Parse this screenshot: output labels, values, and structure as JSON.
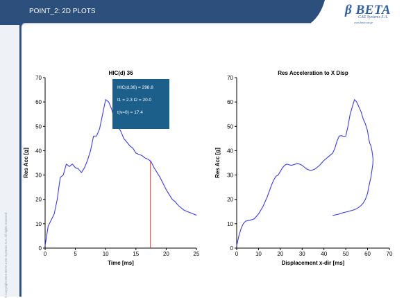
{
  "header": {
    "title": "POINT_2: 2D PLOTS",
    "bar_color": "#2d4f7c",
    "brand_color": "#2e5fa8"
  },
  "logo": {
    "text": "β BETA",
    "subtitle": "CAE Systems S.A.",
    "url": "www.beta-cae.gr"
  },
  "copyright": "© Copyright 2010 BETA CAE Systems S.A. All rights reserved",
  "chart_data": [
    {
      "type": "line",
      "title": "HIC(d) 36",
      "xlabel": "Time [ms]",
      "ylabel": "Res Acc [g]",
      "xlim": [
        0,
        25
      ],
      "ylim": [
        0,
        70
      ],
      "xticks": [
        0,
        5,
        10,
        15,
        20,
        25
      ],
      "yticks": [
        0,
        10,
        20,
        30,
        40,
        50,
        60,
        70
      ],
      "grid": false,
      "line_color": "#3a3aff",
      "series": [
        {
          "x": [
            0,
            0.5,
            1,
            1.5,
            2,
            2.5,
            3,
            3.5,
            4,
            4.5,
            5,
            5.5,
            6,
            6.5,
            7,
            7.5,
            8,
            8.5,
            9,
            9.5,
            10,
            10.5,
            11,
            11.5,
            12,
            12.5,
            13,
            13.5,
            14,
            14.5,
            15,
            15.5,
            16,
            16.5,
            17,
            17.5,
            18,
            18.5,
            19,
            19.5,
            20,
            20.5,
            21,
            21.5,
            22,
            22.5,
            23,
            23.5,
            24,
            24.5,
            25
          ],
          "y": [
            1,
            9,
            11.5,
            14,
            20,
            29,
            30,
            34.5,
            33.5,
            34.5,
            33,
            32.5,
            31,
            33,
            36,
            40,
            46,
            46,
            49,
            55,
            61,
            60,
            57,
            52,
            50,
            48,
            45,
            43.5,
            42,
            41,
            39,
            38.5,
            38,
            37,
            36.5,
            35.5,
            33,
            31,
            29,
            26.5,
            24,
            22,
            20,
            19,
            17.5,
            16.5,
            15.5,
            15,
            14.5,
            14,
            13.5
          ]
        }
      ],
      "annotation": {
        "lines": [
          "HIC(d,36) = 298.8",
          "t1 = 2.3   t2 = 20.0",
          "t(v=0) = 17.4"
        ],
        "box_color": "#1b5f8a"
      },
      "marker": {
        "x": 17.4,
        "color": "#e8342c"
      }
    },
    {
      "type": "line",
      "title": "Res Acceleration to X Disp",
      "xlabel": "Displacement x-dir [ms]",
      "ylabel": "Res Acc [g]",
      "xlim": [
        0,
        70
      ],
      "ylim": [
        0,
        70
      ],
      "xticks": [
        0,
        10,
        20,
        30,
        40,
        50,
        60,
        70
      ],
      "yticks": [
        0,
        10,
        20,
        30,
        40,
        50,
        60,
        70
      ],
      "grid": false,
      "line_color": "#3a3aff",
      "series": [
        {
          "x": [
            0,
            1,
            2,
            3,
            4,
            5,
            6,
            8,
            10,
            12,
            14,
            16,
            17,
            18,
            19,
            20,
            21,
            22,
            23,
            24,
            25,
            26,
            28,
            30,
            32,
            34,
            36,
            38,
            40,
            42,
            44,
            45,
            46,
            47,
            48,
            49,
            50,
            51,
            52,
            53,
            54,
            55,
            56,
            57,
            58,
            59,
            60,
            60.5,
            61,
            61.5,
            62,
            62.3,
            62.5,
            62.4,
            62,
            61.5,
            61,
            60.5,
            60,
            59,
            58,
            57,
            56,
            55,
            54,
            53,
            52,
            51,
            50,
            49,
            48,
            47,
            46,
            45,
            44
          ],
          "y": [
            1,
            5,
            8,
            10,
            11,
            11.3,
            11.4,
            12,
            14,
            17,
            21,
            26,
            28,
            29.5,
            30,
            31.5,
            33,
            34,
            34.5,
            34.2,
            34,
            34.2,
            34.8,
            34,
            32.5,
            31.8,
            32.5,
            34,
            36,
            37.5,
            39,
            41,
            44,
            46,
            46.2,
            45.8,
            46,
            50,
            55,
            58,
            61,
            60,
            58,
            56,
            53,
            51,
            48,
            45,
            43,
            42,
            40,
            38,
            36.5,
            34.5,
            32,
            29,
            27,
            25,
            22.5,
            20,
            18.5,
            17.5,
            16.8,
            16.2,
            15.8,
            15.5,
            15.3,
            15.0,
            14.8,
            14.6,
            14.3,
            14.0,
            13.8,
            13.6,
            13.4
          ]
        }
      ]
    }
  ]
}
